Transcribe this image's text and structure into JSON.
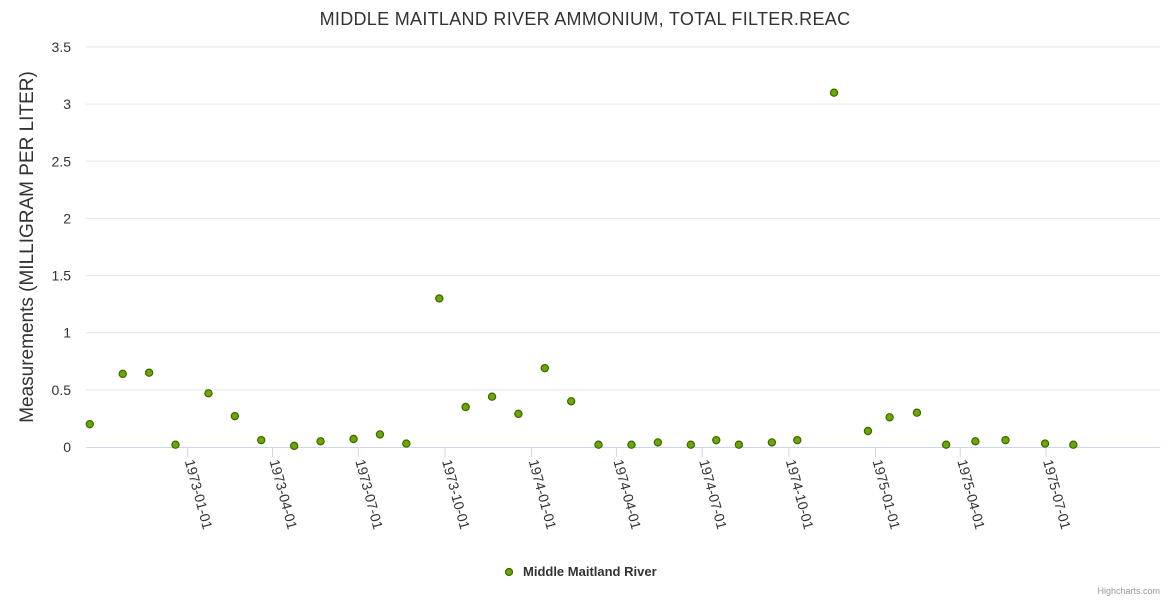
{
  "chart_data": {
    "type": "scatter",
    "title": "MIDDLE MAITLAND RIVER AMMONIUM, TOTAL FILTER.REAC",
    "xlabel": "",
    "ylabel": "Measurements (MILLIGRAM PER LITER)",
    "ylim": [
      0,
      3.5
    ],
    "y_ticks": [
      0,
      0.5,
      1,
      1.5,
      2,
      2.5,
      3,
      3.5
    ],
    "y_tick_labels": [
      "0",
      "0.5",
      "1",
      "1.5",
      "2",
      "2.5",
      "3",
      "3.5"
    ],
    "xlim": [
      "1972-09-15",
      "1975-10-30"
    ],
    "x_ticks": [
      "1973-01-01",
      "1973-04-01",
      "1973-07-01",
      "1973-10-01",
      "1974-01-01",
      "1974-04-01",
      "1974-07-01",
      "1974-10-01",
      "1975-01-01",
      "1975-04-01",
      "1975-07-01"
    ],
    "grid": true,
    "legend_position": "bottom-center",
    "color": "#7cb5ec",
    "marker_fill": "#6aa800",
    "marker_stroke": "#3d6600",
    "series": [
      {
        "name": "Middle Maitland River",
        "points": [
          {
            "x": "1972-09-19",
            "y": 0.2
          },
          {
            "x": "1972-10-24",
            "y": 0.64
          },
          {
            "x": "1972-11-21",
            "y": 0.65
          },
          {
            "x": "1972-12-19",
            "y": 0.02
          },
          {
            "x": "1973-01-23",
            "y": 0.47
          },
          {
            "x": "1973-02-20",
            "y": 0.27
          },
          {
            "x": "1973-03-20",
            "y": 0.06
          },
          {
            "x": "1973-04-24",
            "y": 0.01
          },
          {
            "x": "1973-05-22",
            "y": 0.05
          },
          {
            "x": "1973-06-26",
            "y": 0.07
          },
          {
            "x": "1973-07-24",
            "y": 0.11
          },
          {
            "x": "1973-08-21",
            "y": 0.03
          },
          {
            "x": "1973-09-25",
            "y": 1.3
          },
          {
            "x": "1973-10-23",
            "y": 0.35
          },
          {
            "x": "1973-11-20",
            "y": 0.44
          },
          {
            "x": "1973-12-18",
            "y": 0.29
          },
          {
            "x": "1974-01-15",
            "y": 0.69
          },
          {
            "x": "1974-02-12",
            "y": 0.4
          },
          {
            "x": "1974-03-13",
            "y": 0.02
          },
          {
            "x": "1974-04-17",
            "y": 0.02
          },
          {
            "x": "1974-05-15",
            "y": 0.04
          },
          {
            "x": "1974-06-19",
            "y": 0.02
          },
          {
            "x": "1974-07-16",
            "y": 0.06
          },
          {
            "x": "1974-08-09",
            "y": 0.02
          },
          {
            "x": "1974-09-13",
            "y": 0.04
          },
          {
            "x": "1974-10-10",
            "y": 0.06
          },
          {
            "x": "1974-11-18",
            "y": 3.1
          },
          {
            "x": "1974-12-24",
            "y": 0.14
          },
          {
            "x": "1975-01-16",
            "y": 0.26
          },
          {
            "x": "1975-02-14",
            "y": 0.3
          },
          {
            "x": "1975-03-17",
            "y": 0.02
          },
          {
            "x": "1975-04-17",
            "y": 0.05
          },
          {
            "x": "1975-05-19",
            "y": 0.06
          },
          {
            "x": "1975-06-30",
            "y": 0.03
          },
          {
            "x": "1975-07-30",
            "y": 0.02
          }
        ]
      }
    ],
    "credits": "Highcharts.com"
  }
}
